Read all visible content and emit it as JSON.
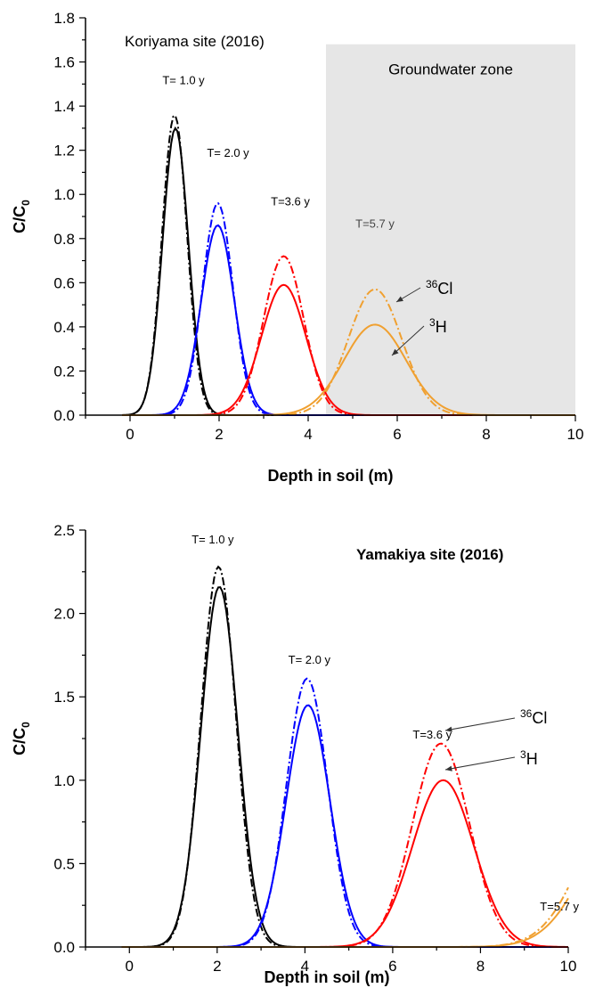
{
  "chart_data": [
    {
      "type": "line",
      "title": "Koriyama site (2016)",
      "xlabel": "Depth in soil (m)",
      "ylabel_main": "C/C",
      "ylabel_sub": "0",
      "xlim": [
        -1,
        10
      ],
      "ylim": [
        0,
        1.8
      ],
      "xticks": [
        "0",
        "2",
        "4",
        "6",
        "8",
        "10"
      ],
      "yticks": [
        "0.0",
        "0.2",
        "0.4",
        "0.6",
        "0.8",
        "1.0",
        "1.2",
        "1.4",
        "1.6",
        "1.8"
      ],
      "zone": {
        "label": "Groundwater zone",
        "x_start": 4.4,
        "x_end": 10,
        "y_top": 1.68
      },
      "annotations": [
        {
          "text": "T= 1.0 y",
          "x": 1.2,
          "y": 1.5
        },
        {
          "text": "T= 2.0 y",
          "x": 2.2,
          "y": 1.17
        },
        {
          "text": "T=3.6 y",
          "x": 3.6,
          "y": 0.95
        },
        {
          "text": "T=5.7 y",
          "x": 5.5,
          "y": 0.85
        }
      ],
      "series_labels": {
        "cl": {
          "sup": "36",
          "text": "Cl"
        },
        "h": {
          "sup": "3",
          "text": "H"
        }
      },
      "series": [
        {
          "group": "T= 1.0 y",
          "tracer": "3H",
          "color": "#000000",
          "style": "solid",
          "peak_x": 1.02,
          "peak_y": 1.3,
          "sigma": 0.29
        },
        {
          "group": "T= 1.0 y",
          "tracer": "36Cl",
          "color": "#000000",
          "style": "dashdot",
          "peak_x": 1.0,
          "peak_y": 1.36,
          "sigma": 0.28
        },
        {
          "group": "T= 2.0 y",
          "tracer": "3H",
          "color": "#0000ff",
          "style": "solid",
          "peak_x": 1.97,
          "peak_y": 0.86,
          "sigma": 0.37
        },
        {
          "group": "T= 2.0 y",
          "tracer": "36Cl",
          "color": "#0000ff",
          "style": "dashdot",
          "peak_x": 1.97,
          "peak_y": 0.96,
          "sigma": 0.34
        },
        {
          "group": "T=3.6 y",
          "tracer": "3H",
          "color": "#ff0000",
          "style": "solid",
          "peak_x": 3.45,
          "peak_y": 0.59,
          "sigma": 0.5
        },
        {
          "group": "T=3.6 y",
          "tracer": "36Cl",
          "color": "#ff0000",
          "style": "dashdot",
          "peak_x": 3.45,
          "peak_y": 0.72,
          "sigma": 0.45
        },
        {
          "group": "T=5.7 y",
          "tracer": "3H",
          "color": "#f0a030",
          "style": "solid",
          "peak_x": 5.5,
          "peak_y": 0.41,
          "sigma": 0.7
        },
        {
          "group": "T=5.7 y",
          "tracer": "36Cl",
          "color": "#f0a030",
          "style": "dashdot",
          "peak_x": 5.5,
          "peak_y": 0.57,
          "sigma": 0.6
        }
      ]
    },
    {
      "type": "line",
      "title": "Yamakiya site (2016)",
      "xlabel": "Depth in soil (m)",
      "ylabel_main": "C/C",
      "ylabel_sub": "0",
      "xlim": [
        -1,
        10
      ],
      "ylim": [
        0,
        2.5
      ],
      "xticks": [
        "0",
        "2",
        "4",
        "6",
        "8",
        "10"
      ],
      "yticks": [
        "0.0",
        "0.5",
        "1.0",
        "1.5",
        "2.0",
        "2.5"
      ],
      "annotations": [
        {
          "text": "T= 1.0 y",
          "x": 1.9,
          "y": 2.42
        },
        {
          "text": "T= 2.0 y",
          "x": 4.1,
          "y": 1.7
        },
        {
          "text": "T=3.6 y",
          "x": 6.9,
          "y": 1.25
        },
        {
          "text": "T=5.7 y",
          "x": 9.8,
          "y": 0.22
        }
      ],
      "series_labels": {
        "cl": {
          "sup": "36",
          "text": "Cl"
        },
        "h": {
          "sup": "3",
          "text": "H"
        }
      },
      "series": [
        {
          "group": "T= 1.0 y",
          "tracer": "3H",
          "color": "#000000",
          "style": "solid",
          "peak_x": 2.05,
          "peak_y": 2.16,
          "sigma": 0.42
        },
        {
          "group": "T= 1.0 y",
          "tracer": "36Cl",
          "color": "#000000",
          "style": "dashdot",
          "peak_x": 2.03,
          "peak_y": 2.28,
          "sigma": 0.4
        },
        {
          "group": "T= 2.0 y",
          "tracer": "3H",
          "color": "#0000ff",
          "style": "solid",
          "peak_x": 4.07,
          "peak_y": 1.45,
          "sigma": 0.5
        },
        {
          "group": "T= 2.0 y",
          "tracer": "36Cl",
          "color": "#0000ff",
          "style": "dashdot",
          "peak_x": 4.05,
          "peak_y": 1.61,
          "sigma": 0.47
        },
        {
          "group": "T=3.6 y",
          "tracer": "3H",
          "color": "#ff0000",
          "style": "solid",
          "peak_x": 7.15,
          "peak_y": 1.0,
          "sigma": 0.7
        },
        {
          "group": "T=3.6 y",
          "tracer": "36Cl",
          "color": "#ff0000",
          "style": "dashdot",
          "peak_x": 7.1,
          "peak_y": 1.22,
          "sigma": 0.65
        },
        {
          "group": "T=5.7 y",
          "tracer": "3H",
          "color": "#f0a030",
          "style": "solid",
          "peak_x": 11.5,
          "peak_y": 0.9,
          "sigma": 1.0
        },
        {
          "group": "T=5.7 y",
          "tracer": "36Cl",
          "color": "#f0a030",
          "style": "dashdot",
          "peak_x": 11.5,
          "peak_y": 1.1,
          "sigma": 1.0
        }
      ]
    }
  ]
}
